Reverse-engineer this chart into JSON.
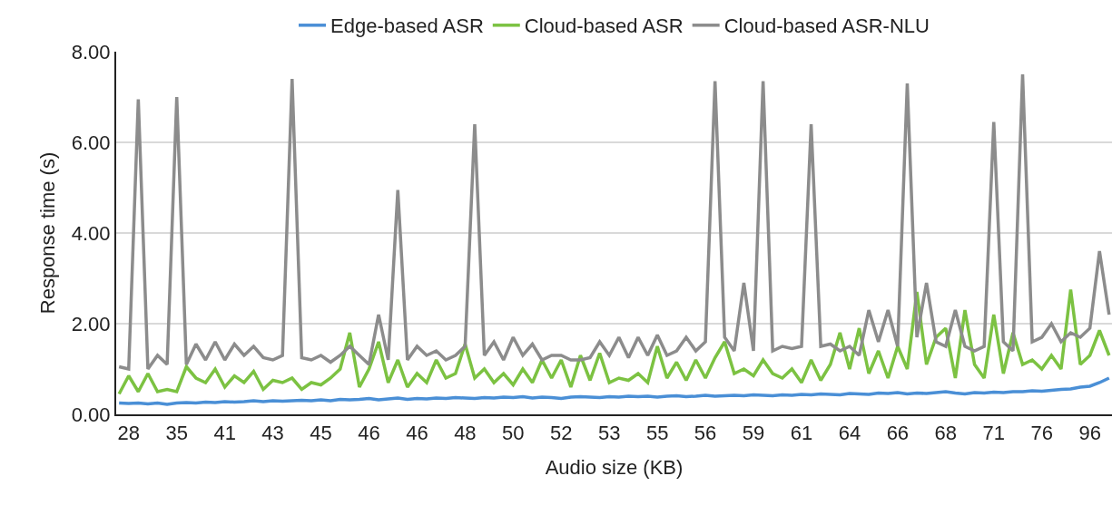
{
  "chart_data": {
    "type": "line",
    "xlabel": "Audio size (KB)",
    "ylabel": "Response time (s)",
    "categories": [
      null,
      "28",
      null,
      null,
      null,
      null,
      "35",
      null,
      null,
      null,
      null,
      "41",
      null,
      null,
      null,
      null,
      "43",
      null,
      null,
      null,
      null,
      "45",
      null,
      null,
      null,
      null,
      "46",
      null,
      null,
      null,
      null,
      "46",
      null,
      null,
      null,
      null,
      "48",
      null,
      null,
      null,
      null,
      "50",
      null,
      null,
      null,
      null,
      "52",
      null,
      null,
      null,
      null,
      "53",
      null,
      null,
      null,
      null,
      "55",
      null,
      null,
      null,
      null,
      "56",
      null,
      null,
      null,
      null,
      "59",
      null,
      null,
      null,
      null,
      "61",
      null,
      null,
      null,
      null,
      "64",
      null,
      null,
      null,
      null,
      "66",
      null,
      null,
      null,
      null,
      "68",
      null,
      null,
      null,
      null,
      "71",
      null,
      null,
      null,
      null,
      "76",
      null,
      null,
      null,
      null,
      "96",
      null,
      null
    ],
    "ylim": [
      0,
      8
    ],
    "yticks": [
      {
        "value": 0,
        "label": "0.00"
      },
      {
        "value": 2,
        "label": "2.00"
      },
      {
        "value": 4,
        "label": "4.00"
      },
      {
        "value": 6,
        "label": "6.00"
      },
      {
        "value": 8,
        "label": "8.00"
      }
    ],
    "grid": "y",
    "legend": "top",
    "marker": "none",
    "line_style": "solid",
    "series": [
      {
        "name": "Edge-based ASR",
        "color": "#4a8fd6",
        "values": [
          0.25,
          0.24,
          0.25,
          0.23,
          0.25,
          0.22,
          0.25,
          0.26,
          0.25,
          0.27,
          0.26,
          0.28,
          0.27,
          0.28,
          0.3,
          0.28,
          0.3,
          0.29,
          0.3,
          0.31,
          0.3,
          0.32,
          0.3,
          0.33,
          0.32,
          0.33,
          0.35,
          0.32,
          0.34,
          0.36,
          0.33,
          0.35,
          0.34,
          0.36,
          0.35,
          0.37,
          0.36,
          0.35,
          0.37,
          0.36,
          0.38,
          0.37,
          0.39,
          0.36,
          0.38,
          0.37,
          0.35,
          0.38,
          0.39,
          0.38,
          0.37,
          0.39,
          0.38,
          0.4,
          0.39,
          0.4,
          0.38,
          0.4,
          0.41,
          0.39,
          0.4,
          0.42,
          0.4,
          0.41,
          0.42,
          0.41,
          0.43,
          0.42,
          0.41,
          0.43,
          0.42,
          0.44,
          0.43,
          0.45,
          0.44,
          0.43,
          0.46,
          0.45,
          0.44,
          0.47,
          0.46,
          0.48,
          0.45,
          0.47,
          0.46,
          0.48,
          0.5,
          0.47,
          0.45,
          0.48,
          0.47,
          0.49,
          0.48,
          0.5,
          0.5,
          0.52,
          0.51,
          0.53,
          0.55,
          0.56,
          0.6,
          0.62,
          0.7,
          0.8
        ]
      },
      {
        "name": "Cloud-based ASR",
        "color": "#7cc242",
        "values": [
          0.45,
          0.85,
          0.5,
          0.9,
          0.5,
          0.55,
          0.5,
          1.05,
          0.8,
          0.7,
          1.0,
          0.6,
          0.85,
          0.7,
          0.95,
          0.55,
          0.75,
          0.7,
          0.8,
          0.55,
          0.7,
          0.65,
          0.8,
          1.0,
          1.8,
          0.6,
          1.0,
          1.6,
          0.7,
          1.2,
          0.6,
          0.9,
          0.7,
          1.2,
          0.8,
          0.9,
          1.55,
          0.8,
          1.0,
          0.7,
          0.9,
          0.65,
          1.0,
          0.7,
          1.2,
          0.8,
          1.2,
          0.6,
          1.3,
          0.75,
          1.35,
          0.7,
          0.8,
          0.75,
          0.9,
          0.7,
          1.5,
          0.8,
          1.15,
          0.75,
          1.2,
          0.8,
          1.25,
          1.6,
          0.9,
          1.0,
          0.85,
          1.2,
          0.9,
          0.8,
          1.0,
          0.7,
          1.2,
          0.75,
          1.1,
          1.8,
          1.0,
          1.9,
          0.9,
          1.4,
          0.8,
          1.5,
          1.0,
          2.7,
          1.1,
          1.7,
          1.9,
          0.8,
          2.3,
          1.1,
          0.8,
          2.2,
          0.9,
          1.8,
          1.1,
          1.2,
          1.0,
          1.3,
          1.0,
          2.75,
          1.1,
          1.3,
          1.85,
          1.3
        ]
      },
      {
        "name": "Cloud-based ASR-NLU",
        "color": "#8c8c8c",
        "values": [
          1.05,
          1.0,
          6.95,
          1.0,
          1.3,
          1.1,
          7.0,
          1.1,
          1.55,
          1.2,
          1.6,
          1.2,
          1.55,
          1.3,
          1.5,
          1.25,
          1.2,
          1.3,
          7.4,
          1.25,
          1.2,
          1.3,
          1.15,
          1.3,
          1.5,
          1.3,
          1.1,
          2.2,
          1.2,
          4.95,
          1.2,
          1.5,
          1.3,
          1.4,
          1.2,
          1.3,
          1.5,
          6.4,
          1.3,
          1.6,
          1.2,
          1.7,
          1.3,
          1.55,
          1.2,
          1.3,
          1.3,
          1.2,
          1.2,
          1.25,
          1.6,
          1.3,
          1.7,
          1.25,
          1.7,
          1.3,
          1.75,
          1.3,
          1.4,
          1.7,
          1.4,
          1.6,
          7.35,
          1.7,
          1.4,
          2.9,
          1.4,
          7.35,
          1.4,
          1.5,
          1.45,
          1.5,
          6.4,
          1.5,
          1.55,
          1.4,
          1.5,
          1.3,
          2.3,
          1.6,
          2.3,
          1.5,
          7.3,
          1.7,
          2.9,
          1.6,
          1.5,
          2.3,
          1.5,
          1.4,
          1.5,
          6.45,
          1.6,
          1.4,
          7.5,
          1.6,
          1.7,
          2.0,
          1.6,
          1.8,
          1.7,
          1.9,
          3.6,
          2.2
        ]
      }
    ]
  }
}
